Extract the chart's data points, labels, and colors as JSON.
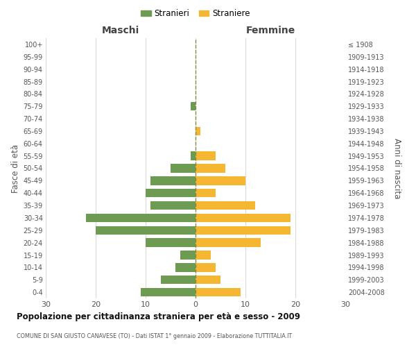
{
  "age_groups": [
    "0-4",
    "5-9",
    "10-14",
    "15-19",
    "20-24",
    "25-29",
    "30-34",
    "35-39",
    "40-44",
    "45-49",
    "50-54",
    "55-59",
    "60-64",
    "65-69",
    "70-74",
    "75-79",
    "80-84",
    "85-89",
    "90-94",
    "95-99",
    "100+"
  ],
  "birth_years": [
    "2004-2008",
    "1999-2003",
    "1994-1998",
    "1989-1993",
    "1984-1988",
    "1979-1983",
    "1974-1978",
    "1969-1973",
    "1964-1968",
    "1959-1963",
    "1954-1958",
    "1949-1953",
    "1944-1948",
    "1939-1943",
    "1934-1938",
    "1929-1933",
    "1924-1928",
    "1919-1923",
    "1914-1918",
    "1909-1913",
    "≤ 1908"
  ],
  "maschi": [
    11,
    7,
    4,
    3,
    10,
    20,
    22,
    9,
    10,
    9,
    5,
    1,
    0,
    0,
    0,
    1,
    0,
    0,
    0,
    0,
    0
  ],
  "femmine": [
    9,
    5,
    4,
    3,
    13,
    19,
    19,
    12,
    4,
    10,
    6,
    4,
    0,
    1,
    0,
    0,
    0,
    0,
    0,
    0,
    0
  ],
  "male_color": "#6d9b52",
  "female_color": "#f5b731",
  "title": "Popolazione per cittadinanza straniera per età e sesso - 2009",
  "subtitle": "COMUNE DI SAN GIUSTO CANAVESE (TO) - Dati ISTAT 1° gennaio 2009 - Elaborazione TUTTITALIA.IT",
  "ylabel_left": "Fasce di età",
  "ylabel_right": "Anni di nascita",
  "header_left": "Maschi",
  "header_right": "Femmine",
  "legend_male": "Stranieri",
  "legend_female": "Straniere",
  "xlim": 30,
  "background_color": "#ffffff",
  "grid_color": "#d8d8d8"
}
